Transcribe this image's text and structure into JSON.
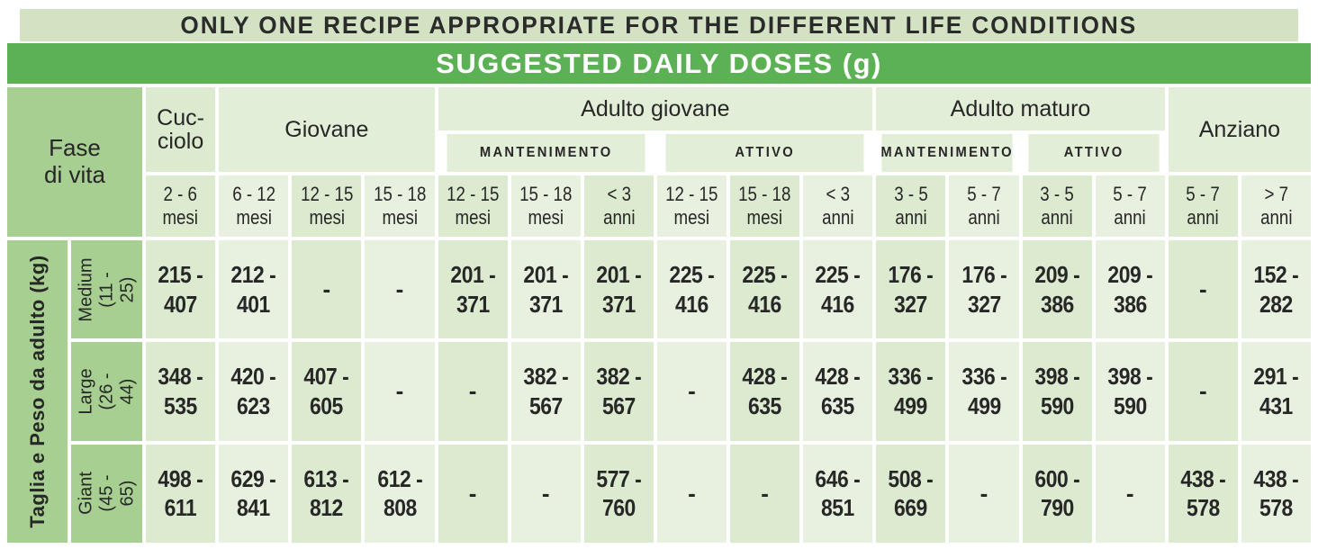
{
  "title": "ONLY ONE RECIPE APPROPRIATE FOR THE DIFFERENT LIFE CONDITIONS",
  "subtitle": "SUGGESTED DAILY DOSES (g)",
  "colors": {
    "banner_green": "#5cb155",
    "title_bar_green": "#d2e2c2",
    "label_green": "#a8cf92",
    "cell_tint_dark": "#dcead0",
    "cell_tint_light": "#e8f1df",
    "text": "#272727"
  },
  "table": {
    "corner_label": "Fase\ndi vita",
    "side_label": "Taglia e Peso da adulto (kg)",
    "groups": [
      {
        "label": "Cuc-\nciolo",
        "span": 1,
        "deep": true,
        "tint": "dark"
      },
      {
        "label": "Giovane",
        "span": 3,
        "deep": true
      },
      {
        "label": "Adulto giovane",
        "span": 6,
        "subs": [
          {
            "label": "MANTENIMENTO",
            "span": 3
          },
          {
            "label": "ATTIVO",
            "span": 3
          }
        ]
      },
      {
        "label": "Adulto maturo",
        "span": 4,
        "subs": [
          {
            "label": "MANTENIMENTO",
            "span": 2
          },
          {
            "label": "ATTIVO",
            "span": 2
          }
        ]
      },
      {
        "label": "Anziano",
        "span": 2,
        "deep": true
      }
    ],
    "age_headers": [
      {
        "range": "2 - 6",
        "unit": "mesi"
      },
      {
        "range": "6 - 12",
        "unit": "mesi"
      },
      {
        "range": "12 - 15",
        "unit": "mesi"
      },
      {
        "range": "15 - 18",
        "unit": "mesi"
      },
      {
        "range": "12 - 15",
        "unit": "mesi"
      },
      {
        "range": "15 - 18",
        "unit": "mesi"
      },
      {
        "range": "< 3",
        "unit": "anni"
      },
      {
        "range": "12 - 15",
        "unit": "mesi"
      },
      {
        "range": "15 - 18",
        "unit": "mesi"
      },
      {
        "range": "< 3",
        "unit": "anni"
      },
      {
        "range": "3 - 5",
        "unit": "anni"
      },
      {
        "range": "5 - 7",
        "unit": "anni"
      },
      {
        "range": "3 - 5",
        "unit": "anni"
      },
      {
        "range": "5 - 7",
        "unit": "anni"
      },
      {
        "range": "5 - 7",
        "unit": "anni"
      },
      {
        "range": "> 7",
        "unit": "anni"
      }
    ],
    "rows": [
      {
        "size": "Medium",
        "weight_range": "(11 - 25)",
        "doses": [
          "215 - 407",
          "212 - 401",
          "-",
          "-",
          "201 - 371",
          "201 - 371",
          "201 - 371",
          "225 - 416",
          "225 - 416",
          "225 - 416",
          "176 - 327",
          "176 - 327",
          "209 - 386",
          "209 - 386",
          "-",
          "152 - 282"
        ]
      },
      {
        "size": "Large",
        "weight_range": "(26 - 44)",
        "doses": [
          "348 - 535",
          "420 - 623",
          "407 - 605",
          "-",
          "-",
          "382 - 567",
          "382 - 567",
          "-",
          "428 - 635",
          "428 - 635",
          "336 - 499",
          "336 - 499",
          "398 - 590",
          "398 - 590",
          "-",
          "291 - 431"
        ]
      },
      {
        "size": "Giant",
        "weight_range": "(45 - 65)",
        "doses": [
          "498 - 611",
          "629 - 841",
          "613 - 812",
          "612 - 808",
          "-",
          "-",
          "577 - 760",
          "-",
          "-",
          "646 - 851",
          "508 - 669",
          "-",
          "600 - 790",
          "-",
          "438 - 578",
          "438 - 578"
        ]
      }
    ]
  }
}
